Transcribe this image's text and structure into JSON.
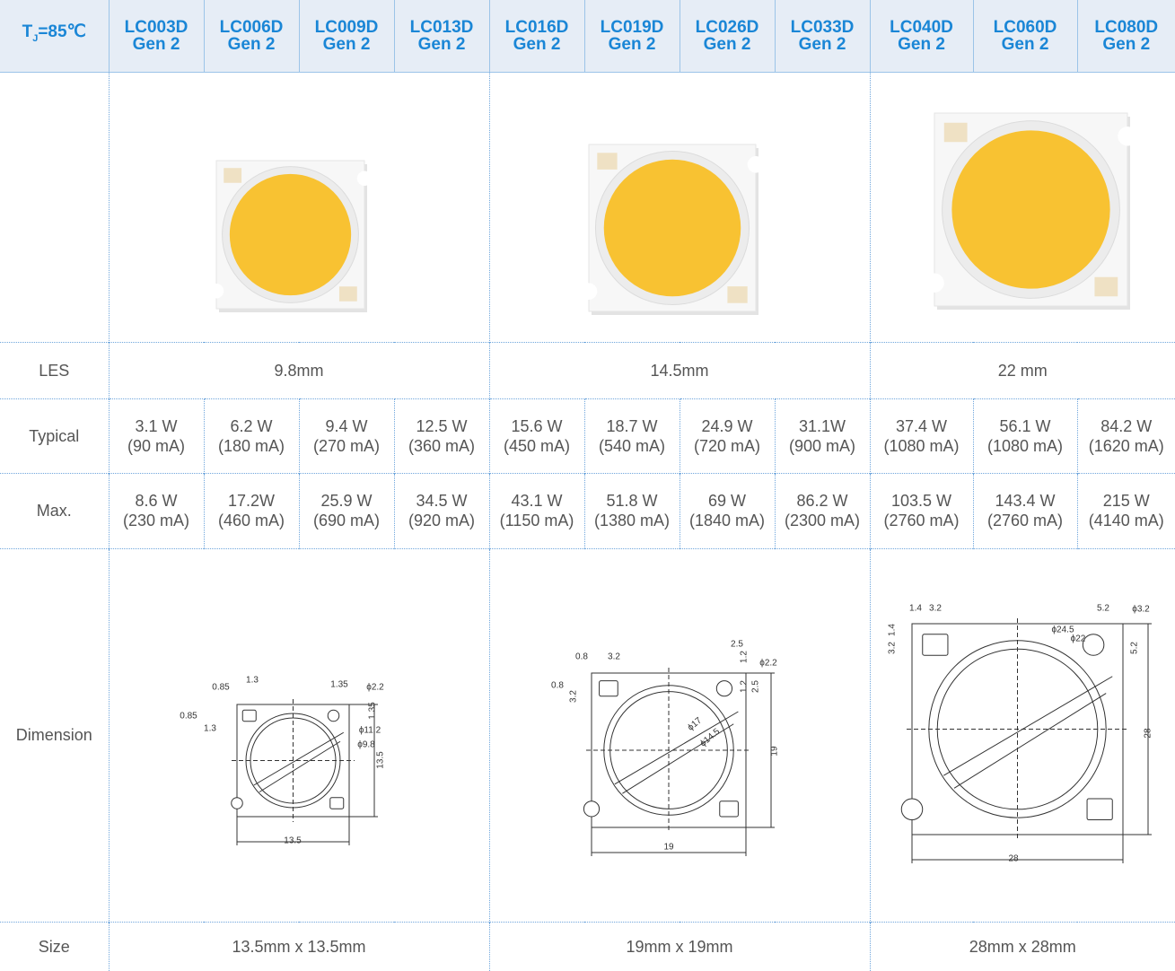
{
  "header": {
    "corner": {
      "symbol": "T",
      "subscript": "J",
      "condition": "=85℃"
    },
    "models": [
      {
        "name": "LC003D",
        "gen": "Gen 2"
      },
      {
        "name": "LC006D",
        "gen": "Gen 2"
      },
      {
        "name": "LC009D",
        "gen": "Gen 2"
      },
      {
        "name": "LC013D",
        "gen": "Gen 2"
      },
      {
        "name": "LC016D",
        "gen": "Gen 2"
      },
      {
        "name": "LC019D",
        "gen": "Gen 2"
      },
      {
        "name": "LC026D",
        "gen": "Gen 2"
      },
      {
        "name": "LC033D",
        "gen": "Gen 2"
      },
      {
        "name": "LC040D",
        "gen": "Gen 2"
      },
      {
        "name": "LC060D",
        "gen": "Gen 2"
      },
      {
        "name": "LC080D",
        "gen": "Gen 2"
      }
    ]
  },
  "rows": {
    "les": {
      "label": "LES",
      "values": [
        "9.8mm",
        "14.5mm",
        "22 mm"
      ]
    },
    "typical": {
      "label": "Typical",
      "values": [
        {
          "power": "3.1 W",
          "current": "(90 mA)"
        },
        {
          "power": "6.2 W",
          "current": "(180 mA)"
        },
        {
          "power": "9.4 W",
          "current": "(270 mA)"
        },
        {
          "power": "12.5 W",
          "current": "(360 mA)"
        },
        {
          "power": "15.6 W",
          "current": "(450 mA)"
        },
        {
          "power": "18.7 W",
          "current": "(540 mA)"
        },
        {
          "power": "24.9 W",
          "current": "(720 mA)"
        },
        {
          "power": "31.1W",
          "current": "(900 mA)"
        },
        {
          "power": "37.4 W",
          "current": "(1080 mA)"
        },
        {
          "power": "56.1 W",
          "current": "(1080 mA)"
        },
        {
          "power": "84.2 W",
          "current": "(1620 mA)"
        }
      ]
    },
    "max": {
      "label": "Max.",
      "values": [
        {
          "power": "8.6 W",
          "current": "(230 mA)"
        },
        {
          "power": "17.2W",
          "current": "(460 mA)"
        },
        {
          "power": "25.9 W",
          "current": "(690 mA)"
        },
        {
          "power": "34.5 W",
          "current": "(920 mA)"
        },
        {
          "power": "43.1 W",
          "current": "(1150 mA)"
        },
        {
          "power": "51.8 W",
          "current": "(1380 mA)"
        },
        {
          "power": "69 W",
          "current": "(1840 mA)"
        },
        {
          "power": "86.2 W",
          "current": "(2300 mA)"
        },
        {
          "power": "103.5 W",
          "current": "(2760 mA)"
        },
        {
          "power": "143.4 W",
          "current": "(2760 mA)"
        },
        {
          "power": "215 W",
          "current": "(4140 mA)"
        }
      ]
    },
    "dimension": {
      "label": "Dimension",
      "drawings": [
        {
          "labels": [
            "0.85",
            "1.3",
            "0.85",
            "1.3",
            "1.35",
            "ϕ2.2",
            "1.35",
            "ϕ11.2",
            "ϕ9.8",
            "13.5",
            "13.5"
          ]
        },
        {
          "labels": [
            "0.8",
            "3.2",
            "0.8",
            "3.2",
            "2.5",
            "1.2",
            "ϕ2.2",
            "1.2",
            "2.5",
            "ϕ17",
            "ϕ14.5",
            "19",
            "19"
          ]
        },
        {
          "labels": [
            "1.4",
            "3.2",
            "3.2",
            "1.4",
            "5.2",
            "ϕ3.2",
            "ϕ24.5",
            "ϕ22",
            "5.2",
            "28",
            "28"
          ]
        }
      ]
    },
    "size": {
      "label": "Size",
      "values": [
        "13.5mm x 13.5mm",
        "19mm x 19mm",
        "28mm x 28mm"
      ]
    }
  }
}
